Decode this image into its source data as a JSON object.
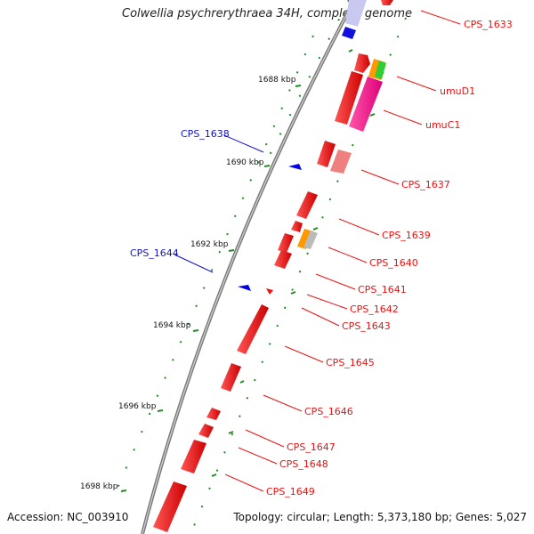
{
  "title": "Colwellia psychrerythraea 34H, complete genome",
  "footer": {
    "accession": "Accession: NC_003910",
    "info": "Topology: circular; Length: 5,373,180 bp; Genes: 5,027"
  },
  "scale_ticks": [
    "1688 kbp",
    "1690 kbp",
    "1692 kbp",
    "1694 kbp",
    "1696 kbp",
    "1698 kbp"
  ],
  "gene_labels": {
    "right": [
      "CPS_1633",
      "umuD1",
      "umuC1",
      "CPS_1637",
      "CPS_1639",
      "CPS_1640",
      "CPS_1641",
      "CPS_1642",
      "CPS_1643",
      "CPS_1645",
      "CPS_1646",
      "CPS_1647",
      "CPS_1648",
      "CPS_1649"
    ],
    "left": [
      "CPS_1638",
      "CPS_1644"
    ]
  },
  "colors": {
    "forward_gene": "#ee1111",
    "reverse_gene": "#0000ee",
    "label_forward": "#ee1111",
    "label_reverse": "#1111cc",
    "tick_green": "#228b22",
    "backbone": "#888888"
  }
}
